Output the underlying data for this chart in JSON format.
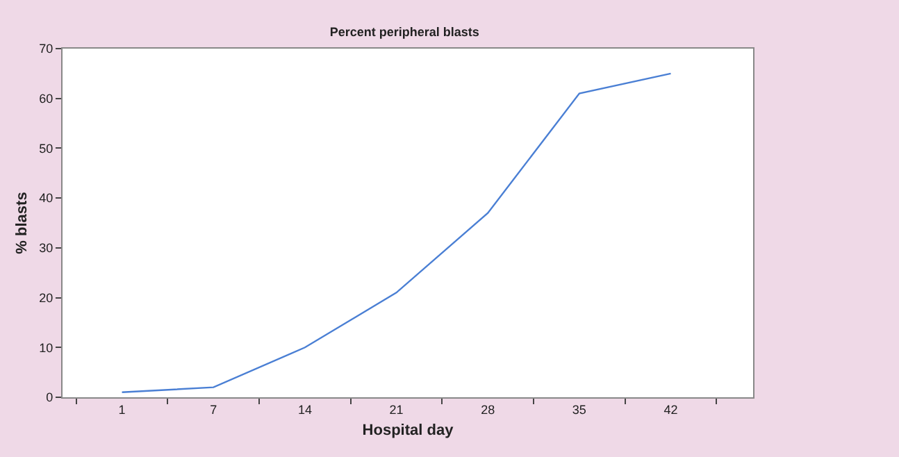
{
  "chart_data": {
    "type": "line",
    "title": "Percent peripheral blasts",
    "xlabel": "Hospital day",
    "ylabel": "% blasts",
    "categories": [
      "1",
      "7",
      "14",
      "21",
      "28",
      "35",
      "42"
    ],
    "series": [
      {
        "color": "#4a7fd4",
        "values": [
          1,
          2,
          10,
          21,
          37,
          61,
          65
        ]
      }
    ],
    "ylim": [
      0,
      70
    ],
    "yticks": [
      0,
      10,
      20,
      30,
      40,
      50,
      60,
      70
    ],
    "grid": false,
    "marker": "none",
    "line_style": "solid"
  }
}
